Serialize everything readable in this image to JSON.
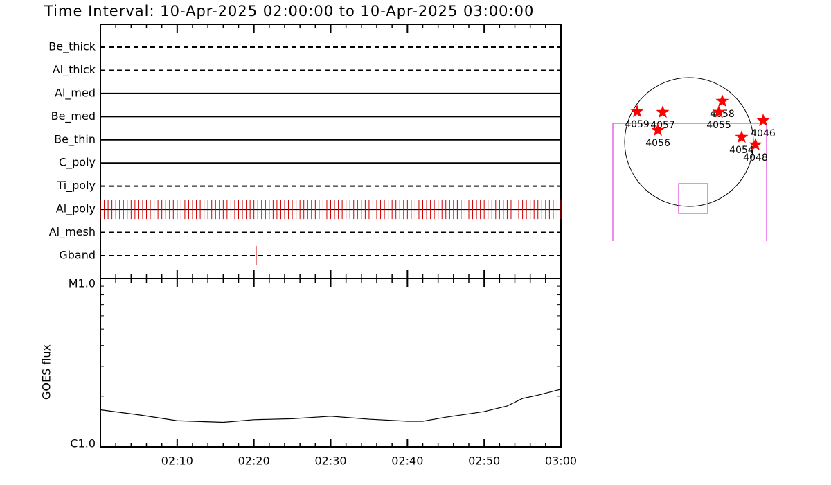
{
  "title": "Time Interval: 10-Apr-2025 02:00:00 to 10-Apr-2025 03:00:00",
  "timeline": {
    "xlim": [
      0,
      60
    ],
    "xticks": [
      {
        "value": 10,
        "label": "02:10"
      },
      {
        "value": 20,
        "label": "02:20"
      },
      {
        "value": 30,
        "label": "02:30"
      },
      {
        "value": 40,
        "label": "02:40"
      },
      {
        "value": 50,
        "label": "02:50"
      },
      {
        "value": 60,
        "label": "03:00"
      }
    ],
    "xminorticks": [
      2,
      4,
      6,
      8,
      12,
      14,
      16,
      18,
      22,
      24,
      26,
      28,
      32,
      34,
      36,
      38,
      42,
      44,
      46,
      48,
      52,
      54,
      56,
      58
    ],
    "mark_color": "#cc0000",
    "filters": [
      {
        "name": "Be_thick",
        "line": "dashed"
      },
      {
        "name": "Al_thick",
        "line": "dashed"
      },
      {
        "name": "Al_med",
        "line": "solid"
      },
      {
        "name": "Be_med",
        "line": "solid"
      },
      {
        "name": "Be_thin",
        "line": "solid"
      },
      {
        "name": "C_poly",
        "line": "solid"
      },
      {
        "name": "Ti_poly",
        "line": "dashed"
      },
      {
        "name": "Al_poly",
        "line": "solid",
        "observations": [
          0,
          0.5,
          1,
          1.5,
          2,
          2.5,
          3,
          3.5,
          4,
          4.5,
          5,
          5.5,
          6,
          6.5,
          7,
          7.5,
          8,
          8.5,
          9,
          9.5,
          10,
          10.5,
          11,
          11.5,
          12,
          12.5,
          13,
          13.5,
          14,
          14.5,
          15,
          15.5,
          16,
          16.5,
          17,
          17.5,
          18,
          18.5,
          19,
          19.5,
          20,
          20.5,
          21,
          21.5,
          22,
          22.5,
          23,
          23.5,
          24,
          24.5,
          25,
          25.5,
          26,
          26.5,
          27,
          27.5,
          28,
          28.5,
          29,
          29.5,
          30,
          30.5,
          31,
          31.5,
          32,
          32.5,
          33,
          33.5,
          34,
          34.5,
          35,
          35.5,
          36,
          36.5,
          37,
          37.5,
          38,
          38.5,
          39,
          39.5,
          40,
          40.5,
          41,
          41.5,
          42,
          42.5,
          43,
          43.5,
          44,
          44.5,
          45,
          45.5,
          46,
          46.5,
          47,
          47.5,
          48,
          48.5,
          49,
          49.5,
          50,
          50.5,
          51,
          51.5,
          52,
          52.5,
          53,
          53.5,
          54,
          54.5,
          55,
          55.5,
          56,
          56.5,
          57,
          57.5,
          58,
          58.5,
          59,
          59.5,
          60
        ]
      },
      {
        "name": "Al_mesh",
        "line": "dashed"
      },
      {
        "name": "Gband",
        "line": "dashed",
        "observations": [
          20.3
        ]
      }
    ]
  },
  "goes": {
    "ylabel": "GOES flux",
    "log": true,
    "ylim": [
      1e-06,
      1e-05
    ],
    "yticks": [
      {
        "value": 1e-06,
        "label": "C1.0"
      },
      {
        "value": 1e-05,
        "label": "M1.0"
      }
    ],
    "yminorticks": [
      2e-06,
      3e-06,
      4e-06,
      5e-06,
      6e-06,
      7e-06,
      8e-06,
      9e-06
    ],
    "color": "#000000",
    "x": [
      0,
      5,
      10,
      16,
      20,
      25,
      30,
      35,
      40,
      42,
      45,
      50,
      53,
      55,
      57,
      60
    ],
    "values": [
      1.66e-06,
      1.55e-06,
      1.43e-06,
      1.4e-06,
      1.45e-06,
      1.47e-06,
      1.52e-06,
      1.46e-06,
      1.42e-06,
      1.42e-06,
      1.5e-06,
      1.62e-06,
      1.75e-06,
      1.94e-06,
      2.03e-06,
      2.2e-06
    ]
  },
  "map": {
    "star_color": "#ff0000",
    "regions": [
      {
        "label": "4059",
        "x": -774,
        "y": 454
      },
      {
        "label": "4057",
        "x": -392,
        "y": 444
      },
      {
        "label": "4056",
        "x": -464,
        "y": 175
      },
      {
        "label": "4058",
        "x": 495,
        "y": 609
      },
      {
        "label": "4055",
        "x": 444,
        "y": 444
      },
      {
        "label": "4046",
        "x": 1104,
        "y": 320
      },
      {
        "label": "4054",
        "x": 784,
        "y": 72
      },
      {
        "label": "4048",
        "x": 991,
        "y": -41
      }
    ]
  }
}
